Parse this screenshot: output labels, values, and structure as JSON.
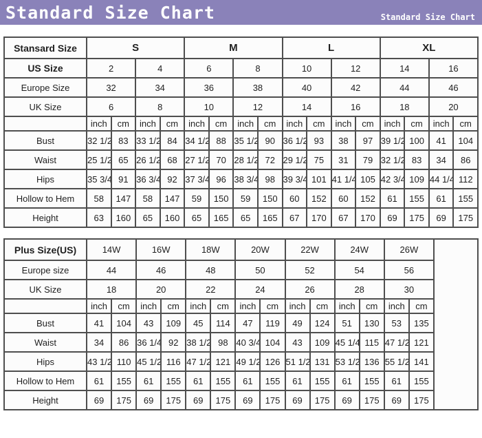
{
  "header": {
    "title": "Standard Size Chart",
    "subtitle": "Standard Size Chart",
    "bar_color": "#8a82b9",
    "text_color": "#ffffff"
  },
  "chart_data": [
    {
      "type": "table",
      "corner_label": "Stansard Size",
      "size_groups": [
        "S",
        "M",
        "L",
        "XL"
      ],
      "groups_bold": true,
      "header_rows": [
        {
          "label": "US Size",
          "bold": true,
          "values": [
            "2",
            "4",
            "6",
            "8",
            "10",
            "12",
            "14",
            "16"
          ]
        },
        {
          "label": "Europe Size",
          "bold": false,
          "values": [
            "32",
            "34",
            "36",
            "38",
            "40",
            "42",
            "44",
            "46"
          ]
        },
        {
          "label": "UK Size",
          "bold": false,
          "values": [
            "6",
            "8",
            "10",
            "12",
            "14",
            "16",
            "18",
            "20"
          ]
        }
      ],
      "unit_labels": [
        "inch",
        "cm"
      ],
      "measurement_rows": [
        {
          "label": "Bust",
          "values": [
            "32 1/2",
            "83",
            "33 1/2",
            "84",
            "34 1/2",
            "88",
            "35 1/2",
            "90",
            "36 1/2",
            "93",
            "38",
            "97",
            "39 1/2",
            "100",
            "41",
            "104"
          ]
        },
        {
          "label": "Waist",
          "values": [
            "25 1/2",
            "65",
            "26 1/2",
            "68",
            "27 1/2",
            "70",
            "28 1/2",
            "72",
            "29 1/2",
            "75",
            "31",
            "79",
            "32 1/2",
            "83",
            "34",
            "86"
          ]
        },
        {
          "label": "Hips",
          "values": [
            "35 3/4",
            "91",
            "36 3/4",
            "92",
            "37 3/4",
            "96",
            "38 3/4",
            "98",
            "39 3/4",
            "101",
            "41 1/4",
            "105",
            "42 3/4",
            "109",
            "44 1/4",
            "112"
          ]
        },
        {
          "label": "Hollow to Hem",
          "values": [
            "58",
            "147",
            "58",
            "147",
            "59",
            "150",
            "59",
            "150",
            "60",
            "152",
            "60",
            "152",
            "61",
            "155",
            "61",
            "155"
          ]
        },
        {
          "label": "Height",
          "values": [
            "63",
            "160",
            "65",
            "160",
            "65",
            "165",
            "65",
            "165",
            "67",
            "170",
            "67",
            "170",
            "69",
            "175",
            "69",
            "175"
          ]
        }
      ],
      "trailing_empty_column": false
    },
    {
      "type": "table",
      "corner_label": "Plus Size(US)",
      "size_groups": [
        "14W",
        "16W",
        "18W",
        "20W",
        "22W",
        "24W",
        "26W"
      ],
      "groups_bold": false,
      "header_rows": [
        {
          "label": "Europe size",
          "bold": false,
          "values": [
            "44",
            "46",
            "48",
            "50",
            "52",
            "54",
            "56"
          ]
        },
        {
          "label": "UK Size",
          "bold": false,
          "values": [
            "18",
            "20",
            "22",
            "24",
            "26",
            "28",
            "30"
          ]
        }
      ],
      "unit_labels": [
        "inch",
        "cm"
      ],
      "measurement_rows": [
        {
          "label": "Bust",
          "values": [
            "41",
            "104",
            "43",
            "109",
            "45",
            "114",
            "47",
            "119",
            "49",
            "124",
            "51",
            "130",
            "53",
            "135"
          ]
        },
        {
          "label": "Waist",
          "values": [
            "34",
            "86",
            "36 1/4",
            "92",
            "38 1/2",
            "98",
            "40 3/4",
            "104",
            "43",
            "109",
            "45 1/4",
            "115",
            "47 1/2",
            "121"
          ]
        },
        {
          "label": "Hips",
          "values": [
            "43 1/2",
            "110",
            "45 1/2",
            "116",
            "47 1/2",
            "121",
            "49 1/2",
            "126",
            "51 1/2",
            "131",
            "53 1/2",
            "136",
            "55 1/2",
            "141"
          ]
        },
        {
          "label": "Hollow to Hem",
          "values": [
            "61",
            "155",
            "61",
            "155",
            "61",
            "155",
            "61",
            "155",
            "61",
            "155",
            "61",
            "155",
            "61",
            "155"
          ]
        },
        {
          "label": "Height",
          "values": [
            "69",
            "175",
            "69",
            "175",
            "69",
            "175",
            "69",
            "175",
            "69",
            "175",
            "69",
            "175",
            "69",
            "175"
          ]
        }
      ],
      "trailing_empty_column": true
    }
  ]
}
